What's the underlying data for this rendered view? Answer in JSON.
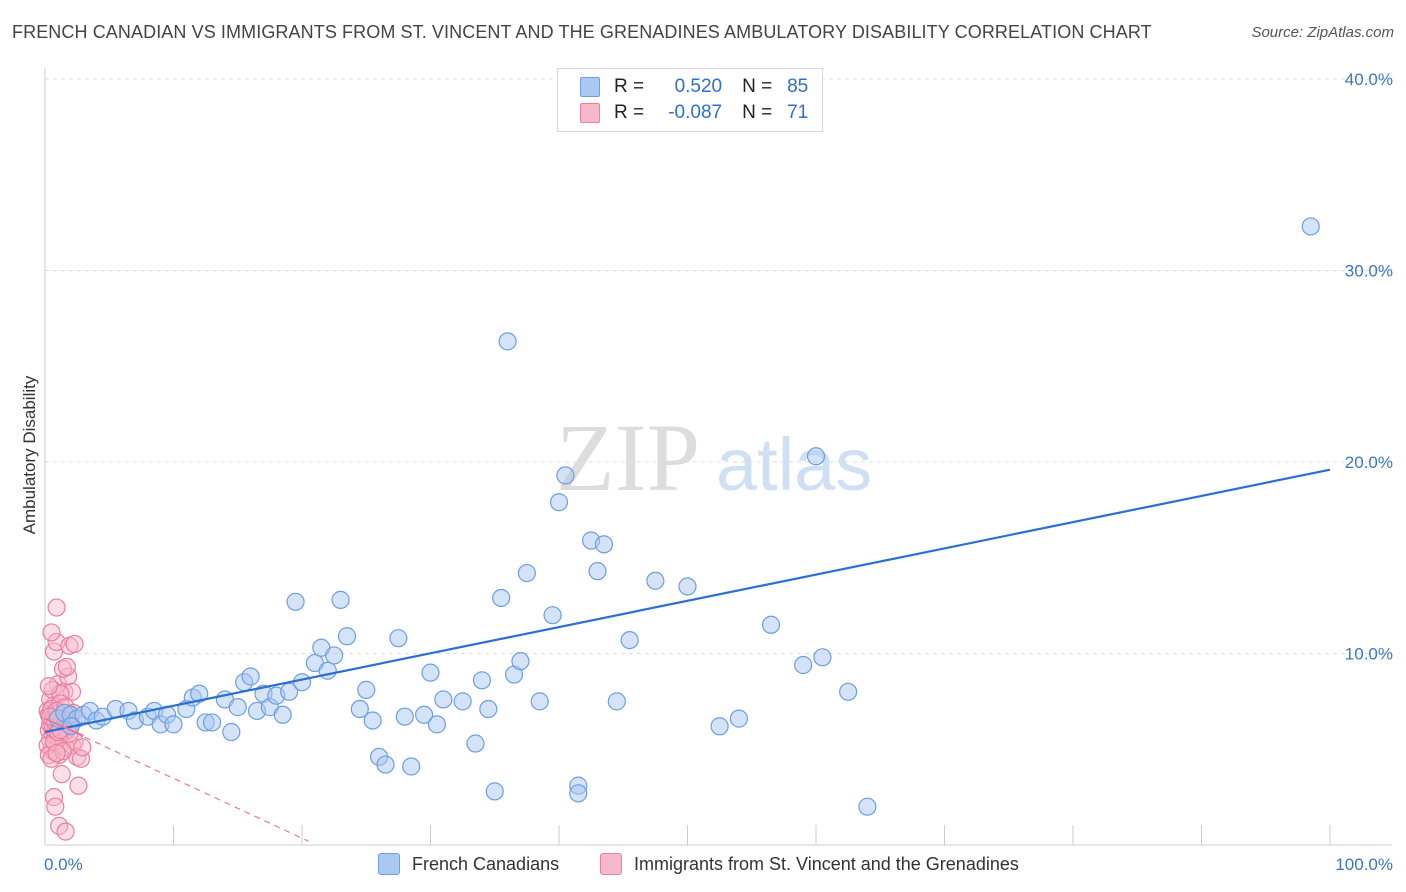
{
  "header": {
    "title": "FRENCH CANADIAN VS IMMIGRANTS FROM ST. VINCENT AND THE GRENADINES AMBULATORY DISABILITY CORRELATION CHART",
    "source": "Source: ZipAtlas.com"
  },
  "watermark": {
    "zip": "ZIP",
    "atlas": "atlas"
  },
  "legend": {
    "row1": {
      "r_label": "R =",
      "r_value": "0.520",
      "n_label": "N =",
      "n_value": "85"
    },
    "row2": {
      "r_label": "R =",
      "r_value": "-0.087",
      "n_label": "N =",
      "n_value": "71"
    }
  },
  "bottom_legend": {
    "series1": "French Canadians",
    "series2": "Immigrants from St. Vincent and the Grenadines"
  },
  "colors": {
    "blue_fill": "#a9c8f2",
    "blue_stroke": "#6d9fe0",
    "blue_line": "#2a6fd2",
    "pink_fill": "#f7b8cb",
    "pink_stroke": "#ea7fa0",
    "pink_line": "#e57a9a",
    "tick_text": "#3a76c8"
  },
  "chart_data": {
    "type": "scatter",
    "title": "FRENCH CANADIAN VS IMMIGRANTS FROM ST. VINCENT AND THE GRENADINES AMBULATORY DISABILITY CORRELATION CHART",
    "xlabel": "",
    "ylabel": "Ambulatory Disability",
    "xlim": [
      0,
      100
    ],
    "ylim": [
      0,
      40
    ],
    "x_tick_labels": [
      "0.0%",
      "100.0%"
    ],
    "y_ticks": [
      10,
      20,
      30,
      40
    ],
    "y_tick_labels": [
      "10.0%",
      "20.0%",
      "30.0%",
      "40.0%"
    ],
    "grid": "horizontal dashed",
    "legend_position": "top-center",
    "series": [
      {
        "name": "French Canadians",
        "R": 0.52,
        "N": 85,
        "trend": {
          "x": [
            0,
            100
          ],
          "y": [
            5.9,
            19.6
          ],
          "style": "solid"
        },
        "points": [
          [
            1.0,
            6.6
          ],
          [
            1.5,
            6.9
          ],
          [
            2.0,
            6.8
          ],
          [
            2.5,
            6.6
          ],
          [
            3.0,
            6.8
          ],
          [
            3.5,
            7.0
          ],
          [
            4.0,
            6.5
          ],
          [
            4.5,
            6.7
          ],
          [
            5.5,
            7.1
          ],
          [
            6.5,
            7.0
          ],
          [
            7.0,
            6.5
          ],
          [
            8.0,
            6.7
          ],
          [
            8.5,
            7.0
          ],
          [
            9.0,
            6.3
          ],
          [
            9.5,
            6.8
          ],
          [
            10.0,
            6.3
          ],
          [
            11.0,
            7.1
          ],
          [
            11.5,
            7.7
          ],
          [
            12.0,
            7.9
          ],
          [
            12.5,
            6.4
          ],
          [
            13.0,
            6.4
          ],
          [
            14.0,
            7.6
          ],
          [
            14.5,
            5.9
          ],
          [
            15.0,
            7.2
          ],
          [
            15.5,
            8.5
          ],
          [
            16.0,
            8.8
          ],
          [
            16.5,
            7.0
          ],
          [
            17.0,
            7.9
          ],
          [
            17.5,
            7.2
          ],
          [
            18.0,
            7.8
          ],
          [
            18.5,
            6.8
          ],
          [
            19.0,
            8.0
          ],
          [
            19.5,
            12.7
          ],
          [
            20.0,
            8.5
          ],
          [
            21.0,
            9.5
          ],
          [
            21.5,
            10.3
          ],
          [
            22.0,
            9.1
          ],
          [
            22.5,
            9.9
          ],
          [
            23.0,
            12.8
          ],
          [
            23.5,
            10.9
          ],
          [
            24.5,
            7.1
          ],
          [
            25.0,
            8.1
          ],
          [
            25.5,
            6.5
          ],
          [
            26.0,
            4.6
          ],
          [
            26.5,
            4.2
          ],
          [
            27.5,
            10.8
          ],
          [
            28.0,
            6.7
          ],
          [
            28.5,
            4.1
          ],
          [
            29.5,
            6.8
          ],
          [
            30.0,
            9.0
          ],
          [
            30.5,
            6.3
          ],
          [
            31.0,
            7.6
          ],
          [
            32.5,
            7.5
          ],
          [
            33.5,
            5.3
          ],
          [
            34.0,
            8.6
          ],
          [
            34.5,
            7.1
          ],
          [
            35.0,
            2.8
          ],
          [
            35.5,
            12.9
          ],
          [
            36.0,
            26.3
          ],
          [
            36.5,
            8.9
          ],
          [
            37.0,
            9.6
          ],
          [
            37.5,
            14.2
          ],
          [
            38.5,
            7.5
          ],
          [
            39.5,
            12.0
          ],
          [
            40.0,
            17.9
          ],
          [
            40.5,
            19.3
          ],
          [
            41.5,
            3.1
          ],
          [
            41.5,
            2.7
          ],
          [
            42.5,
            15.9
          ],
          [
            43.0,
            14.3
          ],
          [
            43.5,
            15.7
          ],
          [
            44.5,
            7.5
          ],
          [
            45.5,
            10.7
          ],
          [
            47.5,
            13.8
          ],
          [
            50.0,
            13.5
          ],
          [
            52.5,
            6.2
          ],
          [
            54.0,
            6.6
          ],
          [
            56.5,
            11.5
          ],
          [
            59.0,
            9.4
          ],
          [
            60.5,
            9.8
          ],
          [
            62.5,
            8.0
          ],
          [
            60.0,
            20.3
          ],
          [
            64.0,
            2.0
          ],
          [
            98.5,
            32.3
          ],
          [
            2.0,
            6.2
          ]
        ]
      },
      {
        "name": "Immigrants from St. Vincent and the Grenadines",
        "R": -0.087,
        "N": 71,
        "trend": {
          "x": [
            0,
            20.5
          ],
          "y": [
            6.6,
            0.2
          ],
          "style": "dashed"
        },
        "points": [
          [
            0.3,
            6.0
          ],
          [
            0.5,
            6.5
          ],
          [
            0.6,
            5.8
          ],
          [
            0.8,
            7.0
          ],
          [
            0.4,
            5.5
          ],
          [
            1.0,
            6.2
          ],
          [
            0.7,
            7.3
          ],
          [
            0.9,
            6.8
          ],
          [
            0.5,
            5.0
          ],
          [
            1.1,
            4.7
          ],
          [
            0.6,
            4.9
          ],
          [
            1.3,
            5.3
          ],
          [
            0.8,
            5.7
          ],
          [
            1.2,
            6.4
          ],
          [
            0.4,
            7.6
          ],
          [
            1.0,
            8.4
          ],
          [
            0.6,
            8.1
          ],
          [
            1.5,
            8.0
          ],
          [
            1.8,
            8.8
          ],
          [
            1.4,
            9.2
          ],
          [
            1.7,
            9.3
          ],
          [
            2.1,
            8.0
          ],
          [
            0.7,
            10.1
          ],
          [
            0.9,
            10.6
          ],
          [
            1.9,
            10.4
          ],
          [
            2.3,
            10.5
          ],
          [
            0.9,
            12.4
          ],
          [
            0.5,
            11.1
          ],
          [
            1.2,
            7.9
          ],
          [
            0.3,
            8.3
          ],
          [
            1.6,
            5.1
          ],
          [
            2.1,
            5.2
          ],
          [
            2.3,
            5.4
          ],
          [
            2.5,
            4.6
          ],
          [
            2.8,
            4.5
          ],
          [
            2.9,
            5.1
          ],
          [
            1.3,
            3.7
          ],
          [
            2.6,
            3.1
          ],
          [
            0.7,
            2.5
          ],
          [
            0.8,
            2.0
          ],
          [
            1.1,
            1.0
          ],
          [
            1.6,
            0.7
          ],
          [
            0.2,
            7.0
          ],
          [
            0.3,
            6.8
          ],
          [
            0.5,
            7.1
          ],
          [
            0.4,
            6.3
          ],
          [
            0.6,
            6.6
          ],
          [
            0.8,
            5.9
          ],
          [
            1.0,
            6.9
          ],
          [
            1.2,
            7.4
          ],
          [
            0.9,
            7.0
          ],
          [
            1.3,
            6.1
          ],
          [
            1.5,
            6.7
          ],
          [
            1.6,
            7.2
          ],
          [
            1.7,
            6.0
          ],
          [
            1.8,
            6.5
          ],
          [
            1.1,
            5.6
          ],
          [
            0.2,
            5.2
          ],
          [
            0.3,
            4.7
          ],
          [
            0.5,
            4.5
          ],
          [
            0.7,
            5.4
          ],
          [
            1.4,
            4.9
          ],
          [
            1.9,
            5.8
          ],
          [
            2.0,
            6.3
          ],
          [
            2.2,
            6.9
          ],
          [
            0.6,
            6.1
          ],
          [
            0.8,
            6.4
          ],
          [
            1.0,
            5.9
          ],
          [
            0.4,
            6.7
          ],
          [
            0.9,
            4.8
          ],
          [
            1.2,
            6.0
          ]
        ]
      }
    ]
  }
}
